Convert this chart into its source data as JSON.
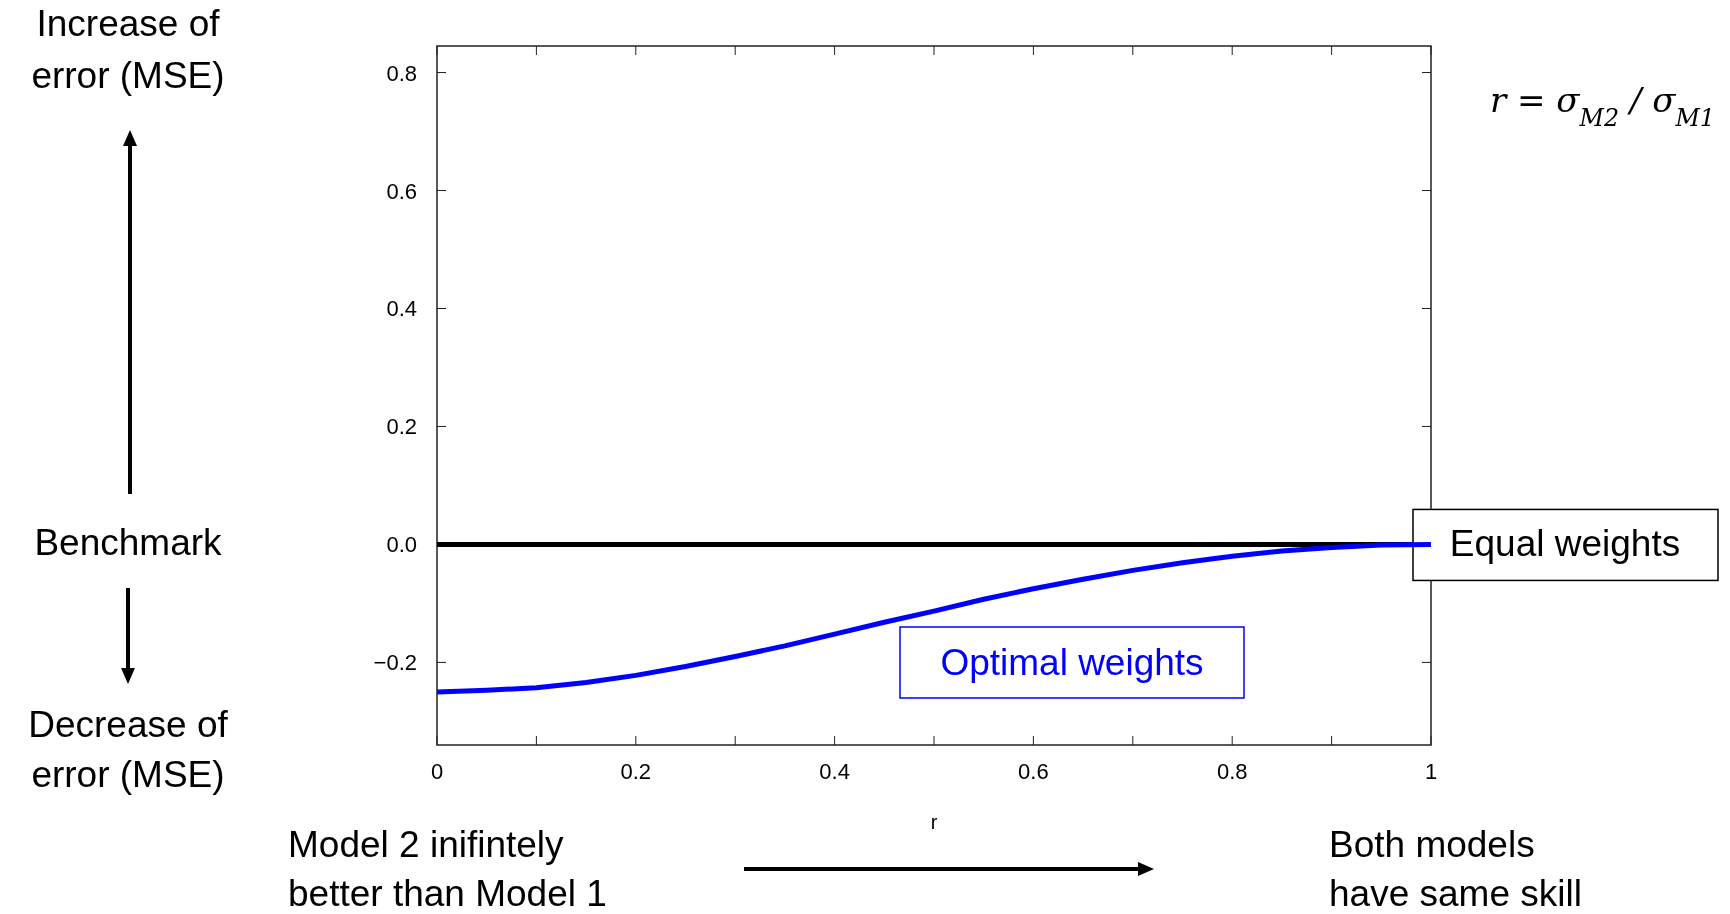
{
  "chart_data": {
    "type": "line",
    "xlabel": "r",
    "x": [
      0,
      0.05,
      0.1,
      0.15,
      0.2,
      0.25,
      0.3,
      0.35,
      0.4,
      0.45,
      0.5,
      0.55,
      0.6,
      0.65,
      0.7,
      0.75,
      0.8,
      0.85,
      0.9,
      0.95,
      1
    ],
    "series": [
      {
        "name": "Optimal weights",
        "color": "#0000ff",
        "values": [
          -0.25,
          -0.247,
          -0.243,
          -0.234,
          -0.222,
          -0.207,
          -0.19,
          -0.172,
          -0.152,
          -0.132,
          -0.113,
          -0.093,
          -0.075,
          -0.059,
          -0.044,
          -0.031,
          -0.02,
          -0.011,
          -0.005,
          -0.001,
          0
        ]
      }
    ],
    "xlim": [
      0,
      1
    ],
    "ylim": [
      -0.34,
      0.845
    ],
    "xticks": [
      0,
      {
        "value": 0.1,
        "label": null
      },
      0.2,
      {
        "value": 0.3,
        "label": null
      },
      0.4,
      {
        "value": 0.5,
        "label": null
      },
      0.6,
      {
        "value": 0.7,
        "label": null
      },
      0.8,
      {
        "value": 0.9,
        "label": null
      },
      1
    ],
    "yticks": [
      {
        "value": -0.2,
        "label": "−0.2"
      },
      {
        "value": 0,
        "label": "0.0"
      },
      {
        "value": 0.2,
        "label": "0.2"
      },
      {
        "value": 0.4,
        "label": "0.4"
      },
      {
        "value": 0.6,
        "label": "0.6"
      },
      {
        "value": 0.8,
        "label": "0.8"
      }
    ],
    "ref_lines": [
      {
        "axis": "y",
        "value": 0,
        "label": "Equal weights",
        "color": "#000000"
      }
    ],
    "grid": false,
    "marker": "none",
    "line_style": "solid",
    "annotations": [
      "Increase of error (MSE)",
      "Benchmark",
      "Decrease of error (MSE)",
      "Model 2 inifintely better than Model 1",
      "Both models have same skill",
      "r = σ$_{M2}$ / σ$_{M1}$"
    ]
  }
}
